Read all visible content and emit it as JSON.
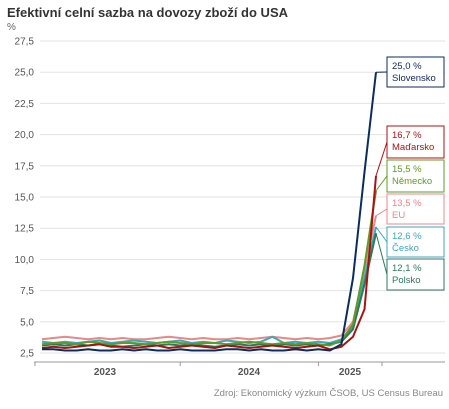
{
  "chart_data": {
    "type": "line",
    "title": "Efektivní celní sazba na dovozy zboží do USA",
    "ylabel": "%",
    "xlabel": "",
    "source": "Zdroj: Ekonomický výzkum ČSOB, US Census Bureau",
    "ylim": [
      2.5,
      27.5
    ],
    "yticks": [
      "2,5",
      "5,0",
      "7,5",
      "10,0",
      "12,5",
      "15,0",
      "17,5",
      "20,0",
      "22,5",
      "25,0",
      "27,5"
    ],
    "x_tick_labels": [
      "2023",
      "2024",
      "2025"
    ],
    "x_start": "2022-12",
    "x_end": "2025-05",
    "grid": true,
    "legend": "right",
    "series": [
      {
        "name": "Slovensko",
        "label": "25,0 %",
        "color": "#0d2b5b",
        "values": [
          2.8,
          2.8,
          2.7,
          2.7,
          2.8,
          2.7,
          2.7,
          2.8,
          2.7,
          2.8,
          2.7,
          2.7,
          2.8,
          2.7,
          2.7,
          2.7,
          2.8,
          2.8,
          2.7,
          2.8,
          2.7,
          2.7,
          2.8,
          2.7,
          2.8,
          2.7,
          3.2,
          8.5,
          17.0,
          25.0
        ]
      },
      {
        "name": "Maďarsko",
        "label": "16,7 %",
        "color": "#a31515",
        "values": [
          2.9,
          3.0,
          2.9,
          3.0,
          3.1,
          3.2,
          3.0,
          3.0,
          2.9,
          3.0,
          3.1,
          2.9,
          3.0,
          3.1,
          3.0,
          2.9,
          3.1,
          3.0,
          2.9,
          3.0,
          3.1,
          3.0,
          2.9,
          3.0,
          3.1,
          2.8,
          3.0,
          3.8,
          6.0,
          16.7
        ]
      },
      {
        "name": "Německo",
        "label": "15,5 %",
        "color": "#5d9b2a",
        "values": [
          3.2,
          3.3,
          3.3,
          3.2,
          3.4,
          3.3,
          3.2,
          3.3,
          3.3,
          3.2,
          3.3,
          3.4,
          3.3,
          3.2,
          3.3,
          3.3,
          3.2,
          3.3,
          3.4,
          3.3,
          3.2,
          3.3,
          3.2,
          3.3,
          3.2,
          3.1,
          3.5,
          4.8,
          9.5,
          15.5
        ]
      },
      {
        "name": "EU",
        "label": "13,5 %",
        "color": "#e8878a",
        "values": [
          3.6,
          3.7,
          3.8,
          3.7,
          3.6,
          3.7,
          3.6,
          3.7,
          3.6,
          3.6,
          3.7,
          3.8,
          3.7,
          3.6,
          3.7,
          3.6,
          3.6,
          3.7,
          3.6,
          3.7,
          3.8,
          3.7,
          3.6,
          3.7,
          3.6,
          3.7,
          3.9,
          5.0,
          9.2,
          13.5
        ]
      },
      {
        "name": "Česko",
        "label": "12,6 %",
        "color": "#3fa6b8",
        "values": [
          3.4,
          3.3,
          3.4,
          3.3,
          3.4,
          3.5,
          3.3,
          3.4,
          3.5,
          3.4,
          3.3,
          3.4,
          3.5,
          3.3,
          3.4,
          3.3,
          3.5,
          3.4,
          3.3,
          3.4,
          3.8,
          3.3,
          3.4,
          3.3,
          3.4,
          3.3,
          3.6,
          4.6,
          8.5,
          12.6
        ]
      },
      {
        "name": "Polsko",
        "label": "12,1 %",
        "color": "#2b7a5a",
        "values": [
          3.1,
          3.2,
          3.1,
          3.2,
          3.1,
          3.2,
          3.1,
          3.0,
          3.1,
          3.2,
          3.1,
          3.2,
          3.1,
          3.2,
          3.1,
          3.0,
          3.1,
          3.2,
          3.1,
          3.2,
          3.1,
          3.2,
          3.1,
          3.2,
          3.1,
          3.2,
          3.4,
          4.4,
          8.0,
          12.1
        ]
      }
    ]
  }
}
